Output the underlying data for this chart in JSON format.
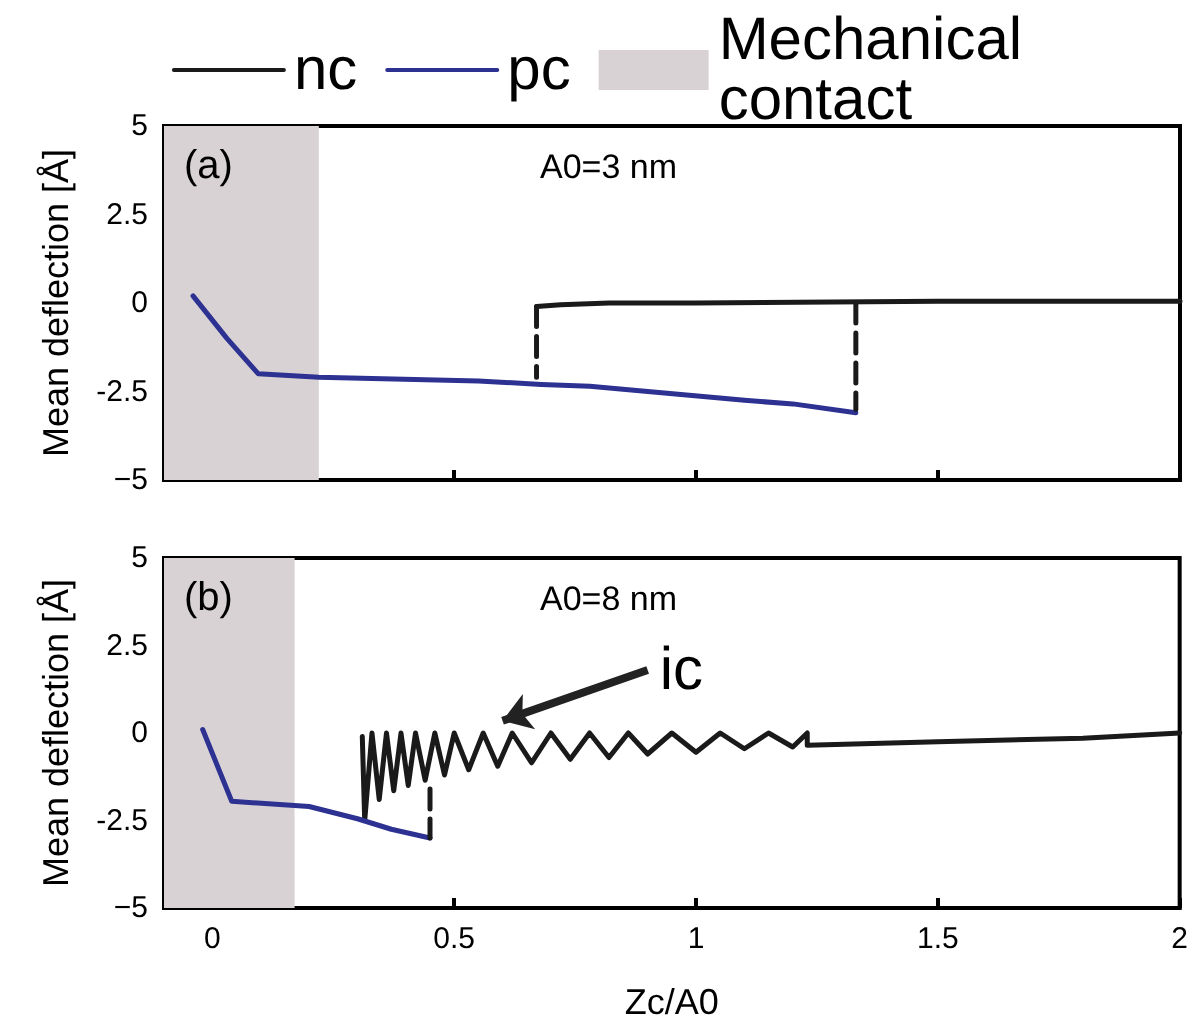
{
  "chart_data": [
    {
      "type": "line",
      "ylabel": "Mean deflection [Å]",
      "xlim": [
        -0.1,
        2
      ],
      "xticks": [
        0,
        0.5,
        1,
        1.5,
        2
      ],
      "ylim": [
        -5,
        5
      ],
      "yticks": [
        5,
        2.5,
        0,
        -2.5,
        {
          "value": -5,
          "label": "−5"
        }
      ],
      "tick_labels": "y",
      "grid": false,
      "legend": "top",
      "annotations": [
        "(a)",
        "A0=3 nm"
      ],
      "bands": [
        {
          "axis": "x",
          "from": -0.1,
          "to": 0.22,
          "label": "Mechanical contact",
          "color": "#d9d2d4"
        }
      ],
      "series": [
        {
          "name": "nc",
          "color": "#1a1a1a",
          "x": [
            0.67,
            0.72,
            0.82,
            1.0,
            1.5,
            2.0
          ],
          "values": [
            -0.1,
            -0.05,
            0,
            0,
            0.05,
            0.05
          ]
        },
        {
          "name": "pc",
          "color": "#2d3191",
          "x": [
            -0.04,
            0.03,
            0.095,
            0.22,
            0.55,
            0.68,
            0.78,
            0.9,
            1.1,
            1.2,
            1.33
          ],
          "values": [
            0.2,
            -1.0,
            -2.0,
            -2.1,
            -2.2,
            -2.3,
            -2.35,
            -2.5,
            -2.75,
            -2.85,
            -3.1
          ]
        },
        {
          "color": "#1a1a1a",
          "line_style": "dashed",
          "x": [
            0.67,
            0.67
          ],
          "values": [
            -0.1,
            -2.1
          ]
        },
        {
          "color": "#1a1a1a",
          "line_style": "dashed",
          "x": [
            1.33,
            1.33
          ],
          "values": [
            0,
            -3.0
          ]
        }
      ]
    },
    {
      "type": "line",
      "xlabel": "Zc/A0",
      "ylabel": "Mean deflection [Å]",
      "xlim": [
        -0.1,
        2
      ],
      "xticks": [
        0,
        0.5,
        1,
        1.5,
        2
      ],
      "ylim": [
        -5,
        5
      ],
      "yticks": [
        5,
        2.5,
        0,
        -2.5,
        {
          "value": -5,
          "label": "−5"
        }
      ],
      "grid": false,
      "annotations": [
        "(b)",
        "A0=8 nm",
        {
          "text": "ic",
          "x": 0.6,
          "y": 0
        }
      ],
      "bands": [
        {
          "axis": "x",
          "from": -0.1,
          "to": 0.17,
          "color": "#d9d2d4"
        }
      ],
      "series": [
        {
          "color": "#1a1a1a",
          "x": [
            0.31,
            0.315,
            0.33,
            0.345,
            0.36,
            0.375,
            0.39,
            0.405,
            0.42,
            0.44,
            0.46,
            0.48,
            0.5,
            0.53,
            0.56,
            0.59,
            0.62,
            0.66,
            0.7,
            0.74,
            0.78,
            0.82,
            0.86,
            0.9,
            0.95,
            1.0,
            1.05,
            1.1,
            1.15,
            1.2,
            1.23,
            1.23,
            1.5,
            1.8,
            2.0
          ],
          "values": [
            -0.1,
            -2.5,
            0,
            -1.9,
            0,
            -1.65,
            0,
            -1.5,
            0,
            -1.35,
            0,
            -1.2,
            0,
            -1.05,
            0,
            -0.95,
            0,
            -0.85,
            0,
            -0.75,
            0,
            -0.7,
            0,
            -0.6,
            0,
            -0.55,
            0,
            -0.45,
            0,
            -0.4,
            0,
            -0.35,
            -0.25,
            -0.15,
            0
          ]
        },
        {
          "color": "#2d3191",
          "x": [
            -0.02,
            0.04,
            0.2,
            0.3,
            0.37,
            0.45
          ],
          "values": [
            0.1,
            -1.95,
            -2.1,
            -2.45,
            -2.75,
            -3.0
          ]
        },
        {
          "color": "#1a1a1a",
          "line_style": "dashed",
          "x": [
            0.45,
            0.45
          ],
          "values": [
            -1.6,
            -3.0
          ]
        }
      ]
    }
  ]
}
